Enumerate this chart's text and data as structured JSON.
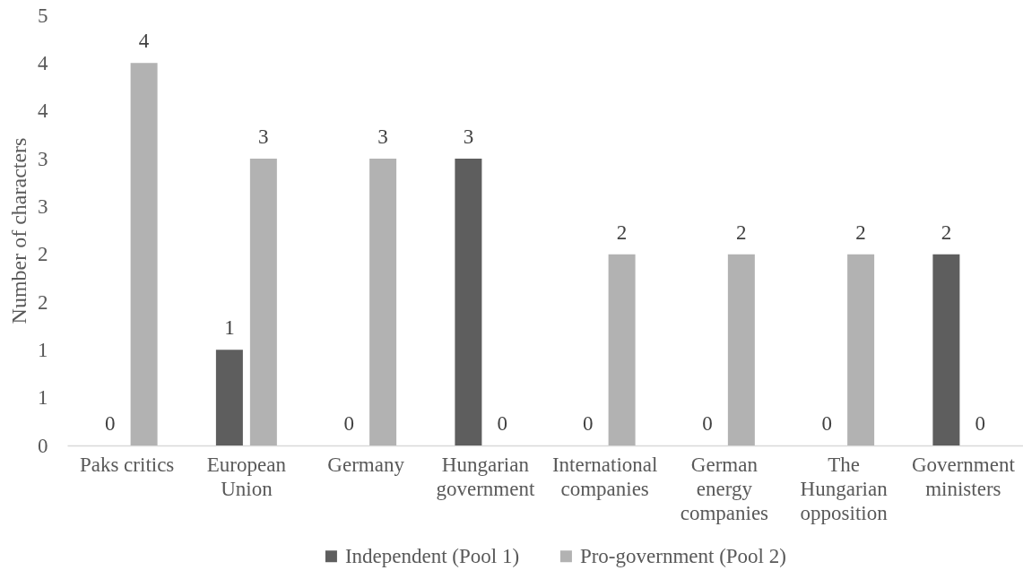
{
  "chart_data": {
    "type": "bar",
    "ylabel": "Number of characters",
    "categories": [
      "Paks critics",
      "European Union",
      "Germany",
      "Hungarian government",
      "International companies",
      "German energy companies",
      "The Hungarian opposition",
      "Government ministers"
    ],
    "series": [
      {
        "name": "Independent (Pool 1)",
        "color": "#5e5e5e",
        "values": [
          0,
          1,
          0,
          3,
          0,
          0,
          0,
          2
        ]
      },
      {
        "name": "Pro-government (Pool 2)",
        "color": "#b2b2b2",
        "values": [
          4,
          3,
          3,
          0,
          2,
          2,
          2,
          0
        ]
      }
    ],
    "ylim": [
      0,
      4.5
    ],
    "yticks": [
      0,
      {
        "value": 0.5,
        "label": "1"
      },
      1,
      {
        "value": 1.5,
        "label": "2"
      },
      2,
      {
        "value": 2.5,
        "label": "3"
      },
      3,
      {
        "value": 3.5,
        "label": "4"
      },
      4,
      {
        "value": 4.5,
        "label": "5"
      }
    ],
    "legend": "bottom",
    "data_labels": true
  }
}
